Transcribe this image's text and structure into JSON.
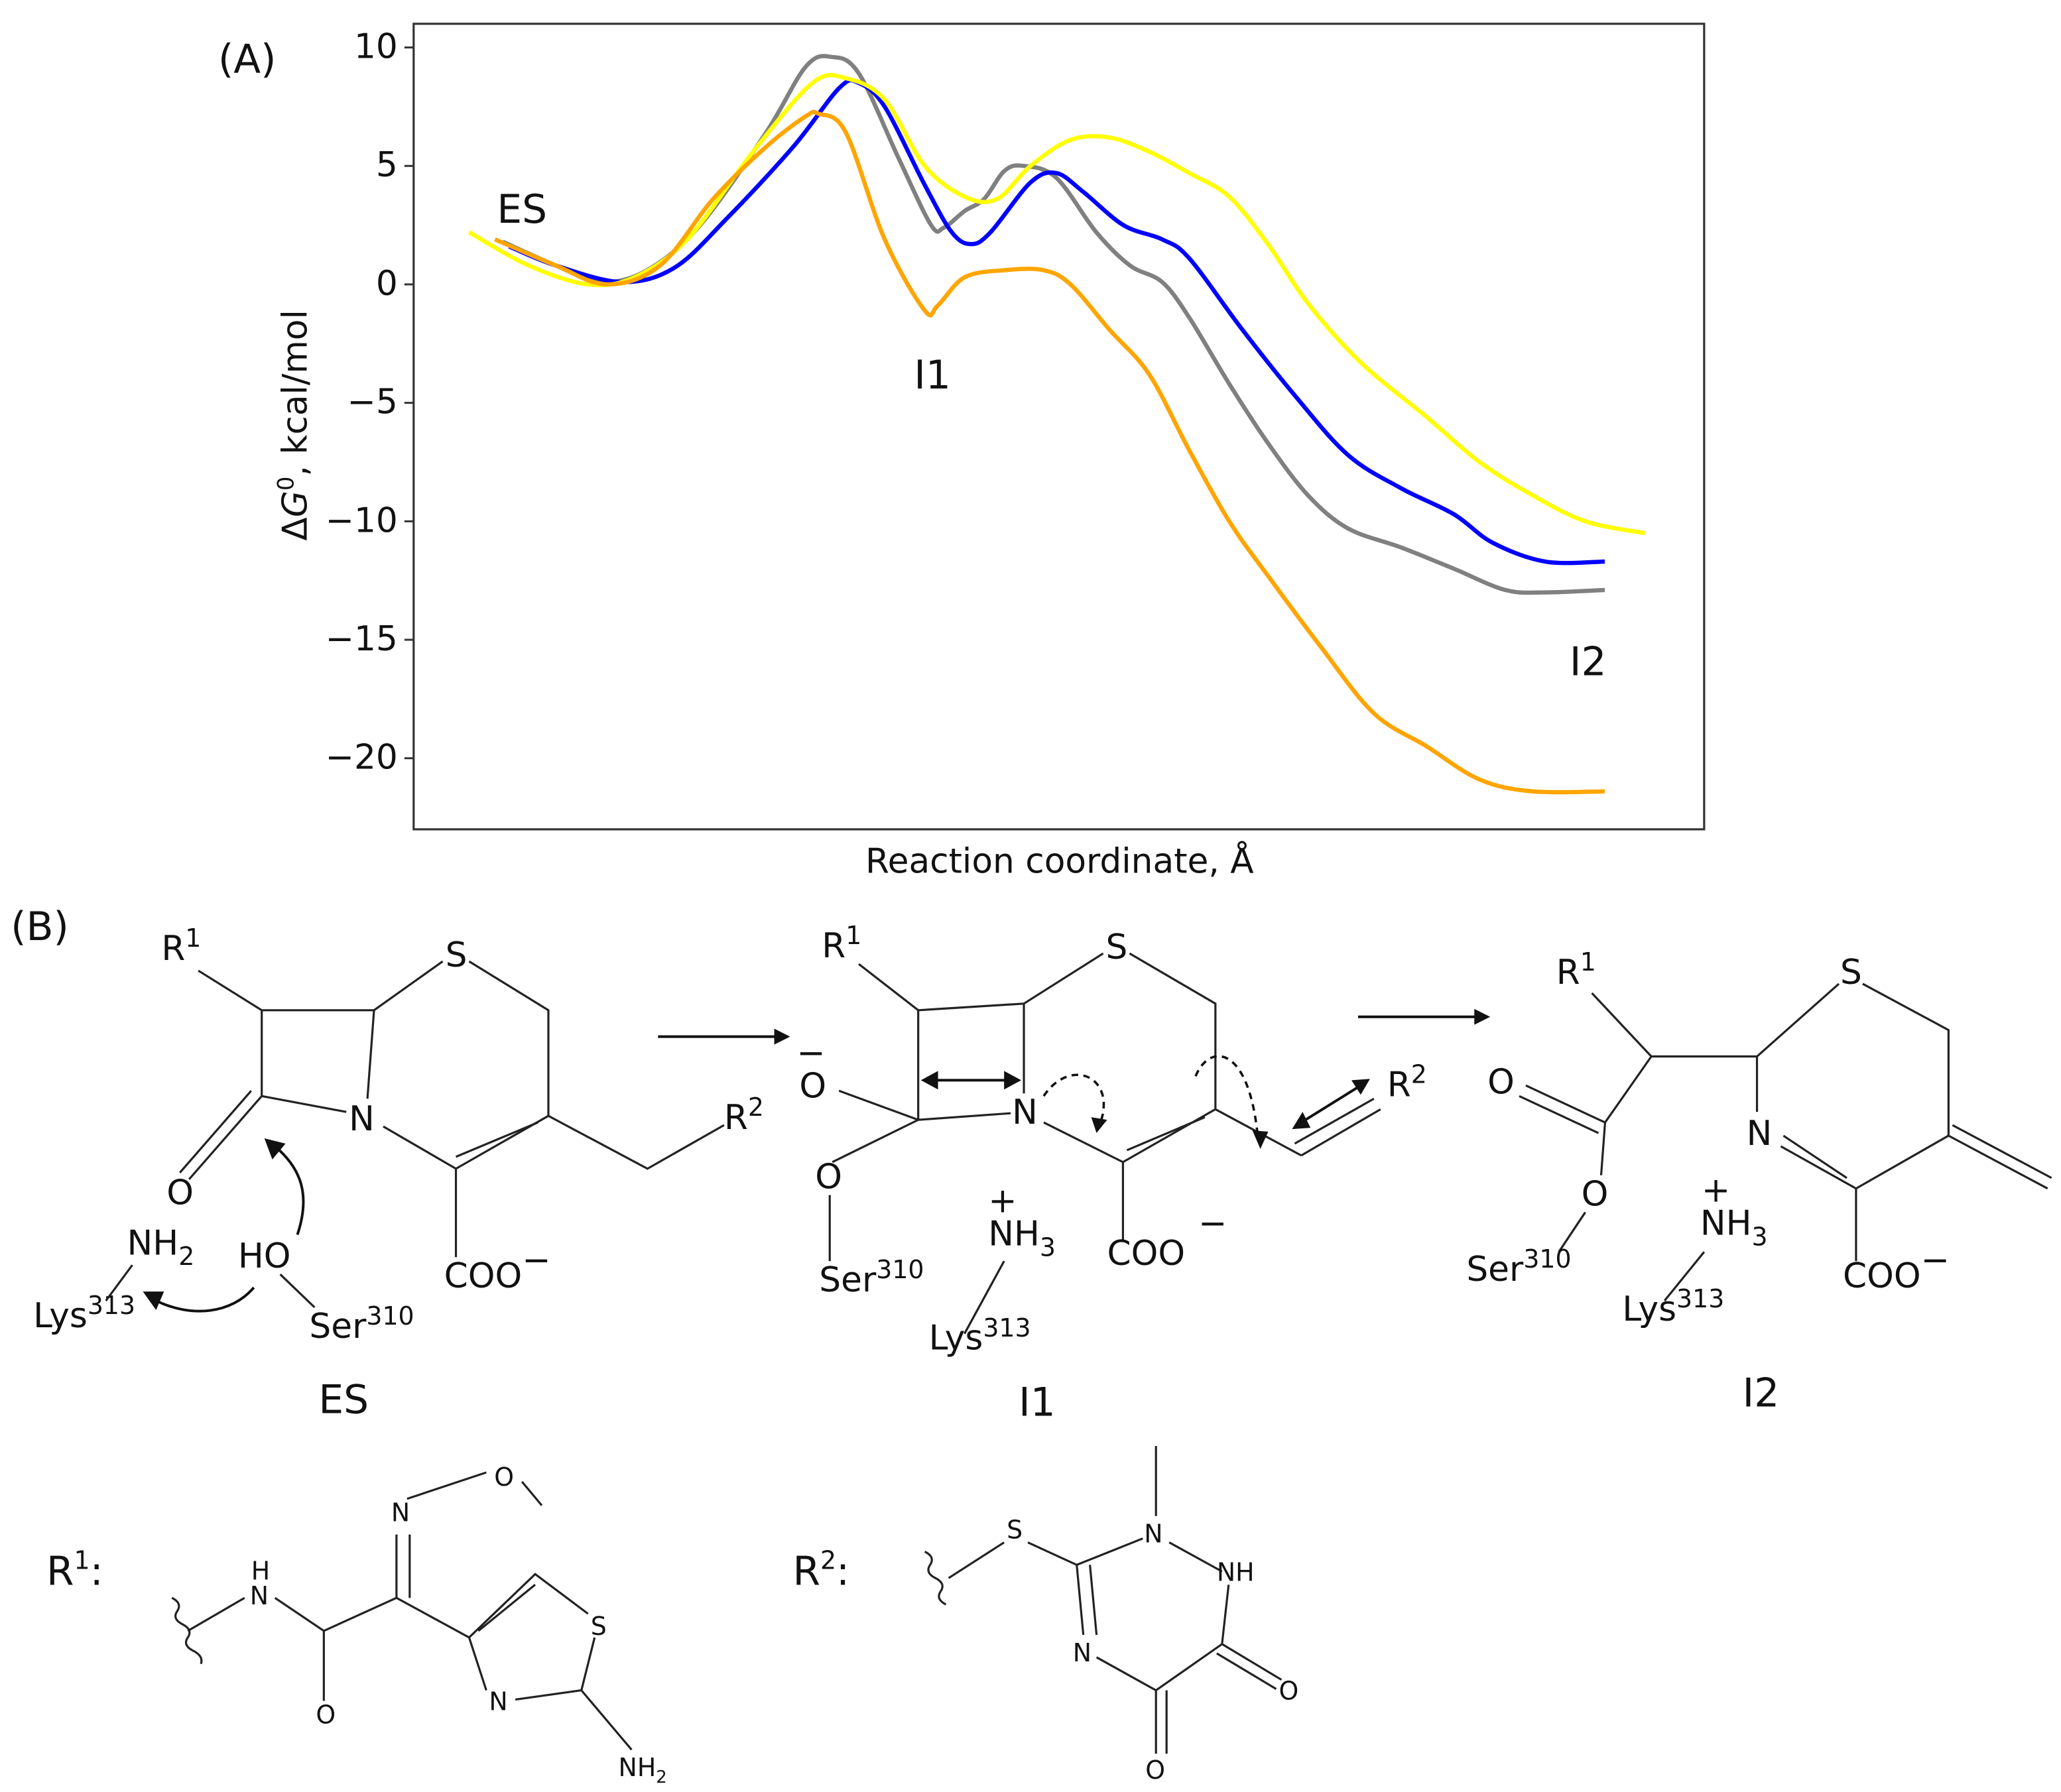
{
  "panel_a_label": "(A)",
  "panel_b_label": "(B)",
  "chart_data": {
    "type": "line",
    "title": "",
    "xlabel": "Reaction coordinate, Å",
    "ylabel": "ΔG⁰, kcal/mol",
    "ylabel_parts": {
      "delta": "Δ",
      "G": "G",
      "sup": "0",
      "rest": ", kcal/mol"
    },
    "xlim": [
      0,
      100
    ],
    "ylim": [
      -23,
      11
    ],
    "yticks": [
      10,
      5,
      0,
      -5,
      -10,
      -15,
      -20
    ],
    "ytick_labels": [
      "10",
      "5",
      "0",
      "−5",
      "−10",
      "−15",
      "−20"
    ],
    "grid": false,
    "annotations": [
      {
        "text": "ES",
        "x": 8.4,
        "y": 2.6
      },
      {
        "text": "I1",
        "x": 40.2,
        "y": -4.4
      },
      {
        "text": "I2",
        "x": 91,
        "y": -16.5
      }
    ],
    "series": [
      {
        "name": "gray",
        "color": "#808080",
        "x": [
          6.9,
          11.0,
          14.5,
          18.1,
          22.2,
          27.3,
          30.4,
          32.4,
          34.5,
          37.6,
          40.1,
          41.1,
          42.7,
          44.2,
          45.8,
          47.3,
          49.8,
          52.9,
          55.5,
          58.0,
          60.1,
          63.2,
          66.2,
          69.3,
          72.4,
          76.5,
          80.6,
          84.6,
          87.7,
          92.3
        ],
        "y": [
          1.8,
          0.8,
          0.1,
          0.6,
          2.5,
          6.4,
          9.2,
          9.6,
          8.9,
          5.3,
          2.5,
          2.4,
          3.1,
          3.6,
          4.8,
          5.0,
          4.5,
          2.2,
          0.8,
          0.1,
          -1.4,
          -4.2,
          -6.7,
          -8.9,
          -10.3,
          -11.1,
          -12.0,
          -12.9,
          -13.0,
          -12.9
        ]
      },
      {
        "name": "blue",
        "color": "#0000ff",
        "x": [
          7.4,
          11.0,
          16.1,
          20.2,
          24.3,
          29.4,
          33.0,
          34.5,
          36.5,
          39.6,
          41.7,
          43.2,
          44.7,
          47.8,
          49.8,
          51.9,
          55.0,
          58.0,
          60.1,
          64.2,
          68.3,
          72.4,
          76.5,
          80.6,
          83.6,
          87.7,
          92.3
        ],
        "y": [
          1.6,
          0.8,
          0.1,
          0.7,
          2.8,
          5.8,
          8.3,
          8.5,
          7.5,
          4.2,
          2.2,
          1.7,
          2.2,
          4.3,
          4.7,
          3.9,
          2.5,
          1.9,
          1.1,
          -1.9,
          -4.7,
          -7.2,
          -8.6,
          -9.7,
          -10.9,
          -11.7,
          -11.7
        ]
      },
      {
        "name": "yellow",
        "color": "#ffff00",
        "x": [
          4.3,
          8.9,
          13.5,
          17.1,
          21.2,
          26.3,
          30.9,
          33.5,
          36.5,
          39.6,
          42.7,
          45.2,
          47.8,
          50.9,
          53.9,
          57.0,
          60.1,
          63.2,
          66.2,
          69.3,
          73.4,
          78.5,
          82.6,
          86.7,
          90.8,
          95.4
        ],
        "y": [
          2.2,
          0.8,
          0.0,
          0.3,
          1.9,
          5.6,
          8.5,
          8.7,
          7.8,
          5.0,
          3.7,
          3.6,
          5.0,
          6.1,
          6.2,
          5.6,
          4.7,
          3.7,
          1.7,
          -0.8,
          -3.3,
          -5.6,
          -7.5,
          -8.9,
          -10.0,
          -10.5
        ]
      },
      {
        "name": "orange",
        "color": "#ffa500",
        "x": [
          6.3,
          11.0,
          15.0,
          19.1,
          23.2,
          27.3,
          30.4,
          31.4,
          33.5,
          36.5,
          39.6,
          40.6,
          42.7,
          45.8,
          48.8,
          50.9,
          53.9,
          57.0,
          60.1,
          63.2,
          66.2,
          70.3,
          74.4,
          78.5,
          82.6,
          86.7,
          92.3
        ],
        "y": [
          1.9,
          0.8,
          0.0,
          0.8,
          3.6,
          5.8,
          7.1,
          7.2,
          6.4,
          1.9,
          -1.1,
          -0.9,
          0.3,
          0.6,
          0.6,
          0.0,
          -1.9,
          -3.8,
          -7.0,
          -10.0,
          -12.3,
          -15.3,
          -18.1,
          -19.5,
          -20.9,
          -21.4,
          -21.4
        ]
      }
    ]
  },
  "scheme": {
    "es": {
      "title": "ES",
      "r1": {
        "base": "R",
        "sup": "1"
      },
      "r2": {
        "base": "R",
        "sup": "2"
      },
      "s": "S",
      "n": "N",
      "o": "O",
      "coo": {
        "base": "COO",
        "sup": "−"
      },
      "nh2": {
        "base": "NH",
        "sub": "2"
      },
      "ho": "HO",
      "lys": {
        "base": "Lys",
        "sup": "313"
      },
      "ser": {
        "base": "Ser",
        "sup": "310"
      }
    },
    "i1": {
      "title": "I1",
      "r1": {
        "base": "R",
        "sup": "1"
      },
      "r2": {
        "base": "R",
        "sup": "2"
      },
      "s": "S",
      "n": "N",
      "o_minus": "O",
      "minus": "−",
      "o": "O",
      "coo": "COO",
      "coo_minus": "−",
      "nh3": {
        "base": "NH",
        "sub": "3",
        "plus": "+"
      },
      "lys": {
        "base": "Lys",
        "sup": "313"
      },
      "ser": {
        "base": "Ser",
        "sup": "310"
      }
    },
    "i2": {
      "title": "I2",
      "r1": {
        "base": "R",
        "sup": "1"
      },
      "s": "S",
      "n": "N",
      "o1": "O",
      "o2": "O",
      "coo": {
        "base": "COO",
        "sup": "−"
      },
      "nh3": {
        "base": "NH",
        "sub": "3",
        "plus": "+"
      },
      "lys": {
        "base": "Lys",
        "sup": "313"
      },
      "ser": {
        "base": "Ser",
        "sup": "310"
      }
    },
    "r1_def": {
      "label": {
        "base": "R",
        "sup": "1",
        "colon": ":"
      },
      "h": "H",
      "n": "N",
      "o": "O",
      "n2": "N",
      "o2": "O",
      "s": "S",
      "n3": "N",
      "nh2": {
        "base": "NH",
        "sub": "2"
      }
    },
    "r2_def": {
      "label": {
        "base": "R",
        "sup": "2",
        "colon": ":"
      },
      "s": "S",
      "n1": "N",
      "nh": "NH",
      "n3": "N",
      "o1": "O",
      "o2": "O"
    }
  }
}
